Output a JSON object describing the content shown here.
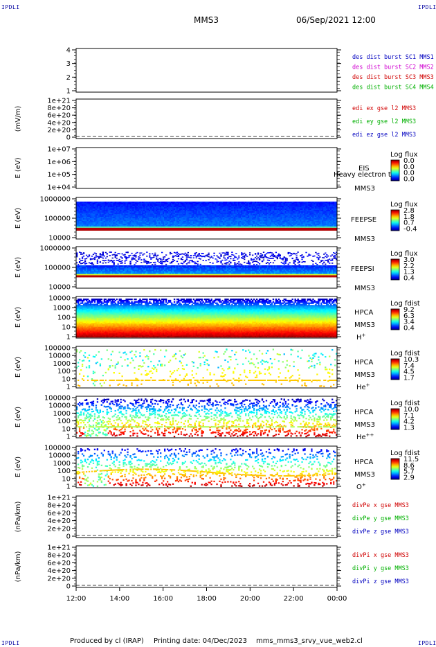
{
  "header": {
    "corner_label": "IPDLI",
    "spacecraft": "MMS3",
    "datetime": "06/Sep/2021 12:00"
  },
  "footer": {
    "produced": "Produced by cl (IRAP)",
    "printing": "Printing date: 04/Dec/2023",
    "file": "mms_mms3_srvy_vue_web2.cl"
  },
  "colors": {
    "axis": "#000000",
    "corner": "#0000a0"
  },
  "x_axis": {
    "ticks": [
      "12:00",
      "14:00",
      "16:00",
      "18:00",
      "20:00",
      "22:00",
      "00:00"
    ],
    "hours": [
      0,
      2,
      4,
      6,
      8,
      10,
      12
    ]
  },
  "chart_data": [
    {
      "id": "dist",
      "type": "line",
      "yticks": [
        "1",
        "2",
        "3",
        "4"
      ],
      "ylabel": "",
      "legend": [
        {
          "text": "des dist burst SC1 MMS1",
          "color": "#0000c0"
        },
        {
          "text": "des dist burst SC2 MMS2",
          "color": "#d000d0"
        },
        {
          "text": "des dist burst SC3 MMS3",
          "color": "#d00000"
        },
        {
          "text": "des dist burst SC4 MMS4",
          "color": "#00b000"
        }
      ]
    },
    {
      "id": "edi",
      "type": "line",
      "yticks": [
        "0",
        "2e+20",
        "4e+20",
        "6e+20",
        "8e+20",
        "1e+21"
      ],
      "ylabel": "(mV/m)",
      "zero_line": true,
      "legend": [
        {
          "text": "edi ex gse l2 MMS3",
          "color": "#d00000"
        },
        {
          "text": "edi ey gse l2 MMS3",
          "color": "#00b000"
        },
        {
          "text": "edi ez gse l2 MMS3",
          "color": "#0000c0"
        }
      ]
    },
    {
      "id": "eis",
      "type": "heatmap",
      "yticks": [
        "1e+04",
        "1e+05",
        "1e+06",
        "1e+07"
      ],
      "ylabel": "E (eV)",
      "labels": [
        "EIS",
        "MMS3"
      ],
      "overlay_text": "Heavy electron to",
      "colorbar_title": "Log flux",
      "colorbar_ticks": [
        "0.0",
        "0.0",
        "0.0",
        "0.0"
      ],
      "empty": true
    },
    {
      "id": "feepse",
      "type": "heatmap",
      "yticks": [
        "10000",
        "100000",
        "1000000"
      ],
      "ylabel": "E (eV)",
      "labels": [
        "FEEPSE",
        "MMS3"
      ],
      "colorbar_title": "Log flux",
      "colorbar_ticks": [
        "2.8",
        "1.8",
        "0.7",
        "-0.4"
      ],
      "pattern": "feepse"
    },
    {
      "id": "feepsi",
      "type": "heatmap",
      "yticks": [
        "10000",
        "100000",
        "1000000"
      ],
      "ylabel": "E (eV)",
      "labels": [
        "FEEPSI",
        "MMS3"
      ],
      "colorbar_title": "Log flux",
      "colorbar_ticks": [
        "3.0",
        "2.2",
        "1.3",
        "0.4"
      ],
      "pattern": "feepsi"
    },
    {
      "id": "hpca_h",
      "type": "heatmap",
      "yticks": [
        "1",
        "10",
        "100",
        "1000",
        "10000"
      ],
      "ylabel": "E (eV)",
      "labels": [
        "HPCA",
        "MMS3",
        "H"
      ],
      "ion_charge": "+",
      "colorbar_title": "Log fdist",
      "colorbar_ticks": [
        "9.2",
        "6.3",
        "3.4",
        "0.4"
      ],
      "pattern": "hplus"
    },
    {
      "id": "hpca_he",
      "type": "heatmap",
      "yticks": [
        "1",
        "10",
        "100",
        "1000",
        "10000",
        "100000"
      ],
      "ylabel": "E (eV)",
      "labels": [
        "HPCA",
        "MMS3",
        "He"
      ],
      "ion_charge": "+",
      "colorbar_title": "Log fdist",
      "colorbar_ticks": [
        "10.3",
        "7.4",
        "4.5",
        "1.7"
      ],
      "pattern": "heplus"
    },
    {
      "id": "hpca_he2",
      "type": "heatmap",
      "yticks": [
        "1",
        "10",
        "100",
        "1000",
        "10000",
        "100000"
      ],
      "ylabel": "E (eV)",
      "labels": [
        "HPCA",
        "MMS3",
        "He"
      ],
      "ion_charge": "++",
      "colorbar_title": "Log fdist",
      "colorbar_ticks": [
        "10.0",
        "7.1",
        "4.2",
        "1.3"
      ],
      "pattern": "heplusplus"
    },
    {
      "id": "hpca_o",
      "type": "heatmap",
      "yticks": [
        "1",
        "10",
        "100",
        "1000",
        "10000",
        "100000"
      ],
      "ylabel": "E (eV)",
      "labels": [
        "HPCA",
        "MMS3",
        "O"
      ],
      "ion_charge": "+",
      "colorbar_title": "Log fdist",
      "colorbar_ticks": [
        "11.5",
        "8.6",
        "5.7",
        "2.9"
      ],
      "pattern": "oplus"
    },
    {
      "id": "divpe",
      "type": "line",
      "yticks": [
        "0",
        "2e+20",
        "4e+20",
        "6e+20",
        "8e+20",
        "1e+21"
      ],
      "ylabel": "(nPa/km)",
      "zero_line": true,
      "legend": [
        {
          "text": "divPe x gse MMS3",
          "color": "#d00000"
        },
        {
          "text": "divPe y gse MMS3",
          "color": "#00b000"
        },
        {
          "text": "divPe z gse MMS3",
          "color": "#0000c0"
        }
      ]
    },
    {
      "id": "divpi",
      "type": "line",
      "yticks": [
        "0",
        "2e+20",
        "4e+20",
        "6e+20",
        "8e+20",
        "1e+21"
      ],
      "ylabel": "(nPa/km)",
      "zero_line": true,
      "legend": [
        {
          "text": "divPi x gse MMS3",
          "color": "#d00000"
        },
        {
          "text": "divPi y gse MMS3",
          "color": "#00b000"
        },
        {
          "text": "divPi z gse MMS3",
          "color": "#0000c0"
        }
      ]
    }
  ]
}
